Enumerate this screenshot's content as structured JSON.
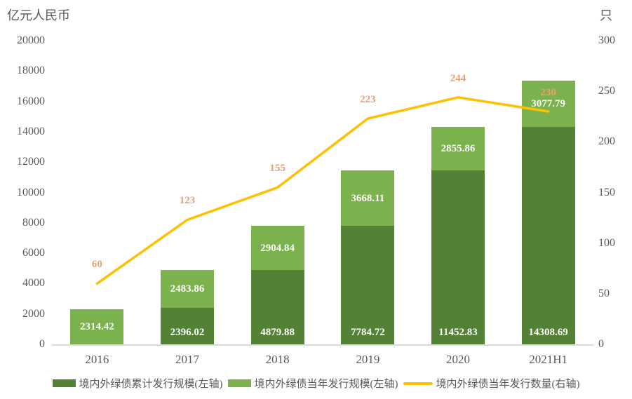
{
  "chart_data": {
    "type": "bar",
    "stacked": true,
    "grid": false,
    "legend_position": "bottom",
    "left_axis": {
      "title": "亿元人民币",
      "max": 20000,
      "ticks": [
        0,
        2000,
        4000,
        6000,
        8000,
        10000,
        12000,
        14000,
        16000,
        18000,
        20000
      ]
    },
    "right_axis": {
      "title": "只",
      "max": 300,
      "ticks": [
        0,
        50,
        100,
        150,
        200,
        250,
        300
      ]
    },
    "categories": [
      "2016",
      "2017",
      "2018",
      "2019",
      "2020",
      "2021H1"
    ],
    "series": [
      {
        "name": "境内外绿债累计发行规模(左轴)",
        "role": "bar",
        "axis": "left",
        "color": "#538135",
        "values": [
          0,
          2396.02,
          4879.88,
          7784.72,
          11452.83,
          14308.69
        ],
        "labels": [
          "",
          "2396.02",
          "4879.88",
          "7784.72",
          "11452.83",
          "14308.69"
        ]
      },
      {
        "name": "境内外绿债当年发行规模(左轴)",
        "role": "bar",
        "axis": "left",
        "color": "#7CB24E",
        "values": [
          2314.42,
          2483.86,
          2904.84,
          3668.11,
          2855.86,
          3077.79
        ],
        "labels": [
          "2314.42",
          "2483.86",
          "2904.84",
          "3668.11",
          "2855.86",
          "3077.79"
        ]
      },
      {
        "name": "境内外绿债当年发行数量(右轴)",
        "role": "line",
        "axis": "right",
        "color": "#FFC000",
        "label_color": "#EB9F73",
        "values": [
          60,
          123,
          155,
          223,
          244,
          230
        ],
        "labels": [
          "60",
          "123",
          "155",
          "223",
          "244",
          "230"
        ]
      }
    ],
    "colors": {
      "axis_text": "#595959",
      "axis_line": "#D9D9D9",
      "bar_label_text": "#FFFFFF",
      "background": "#FFFFFF"
    }
  }
}
